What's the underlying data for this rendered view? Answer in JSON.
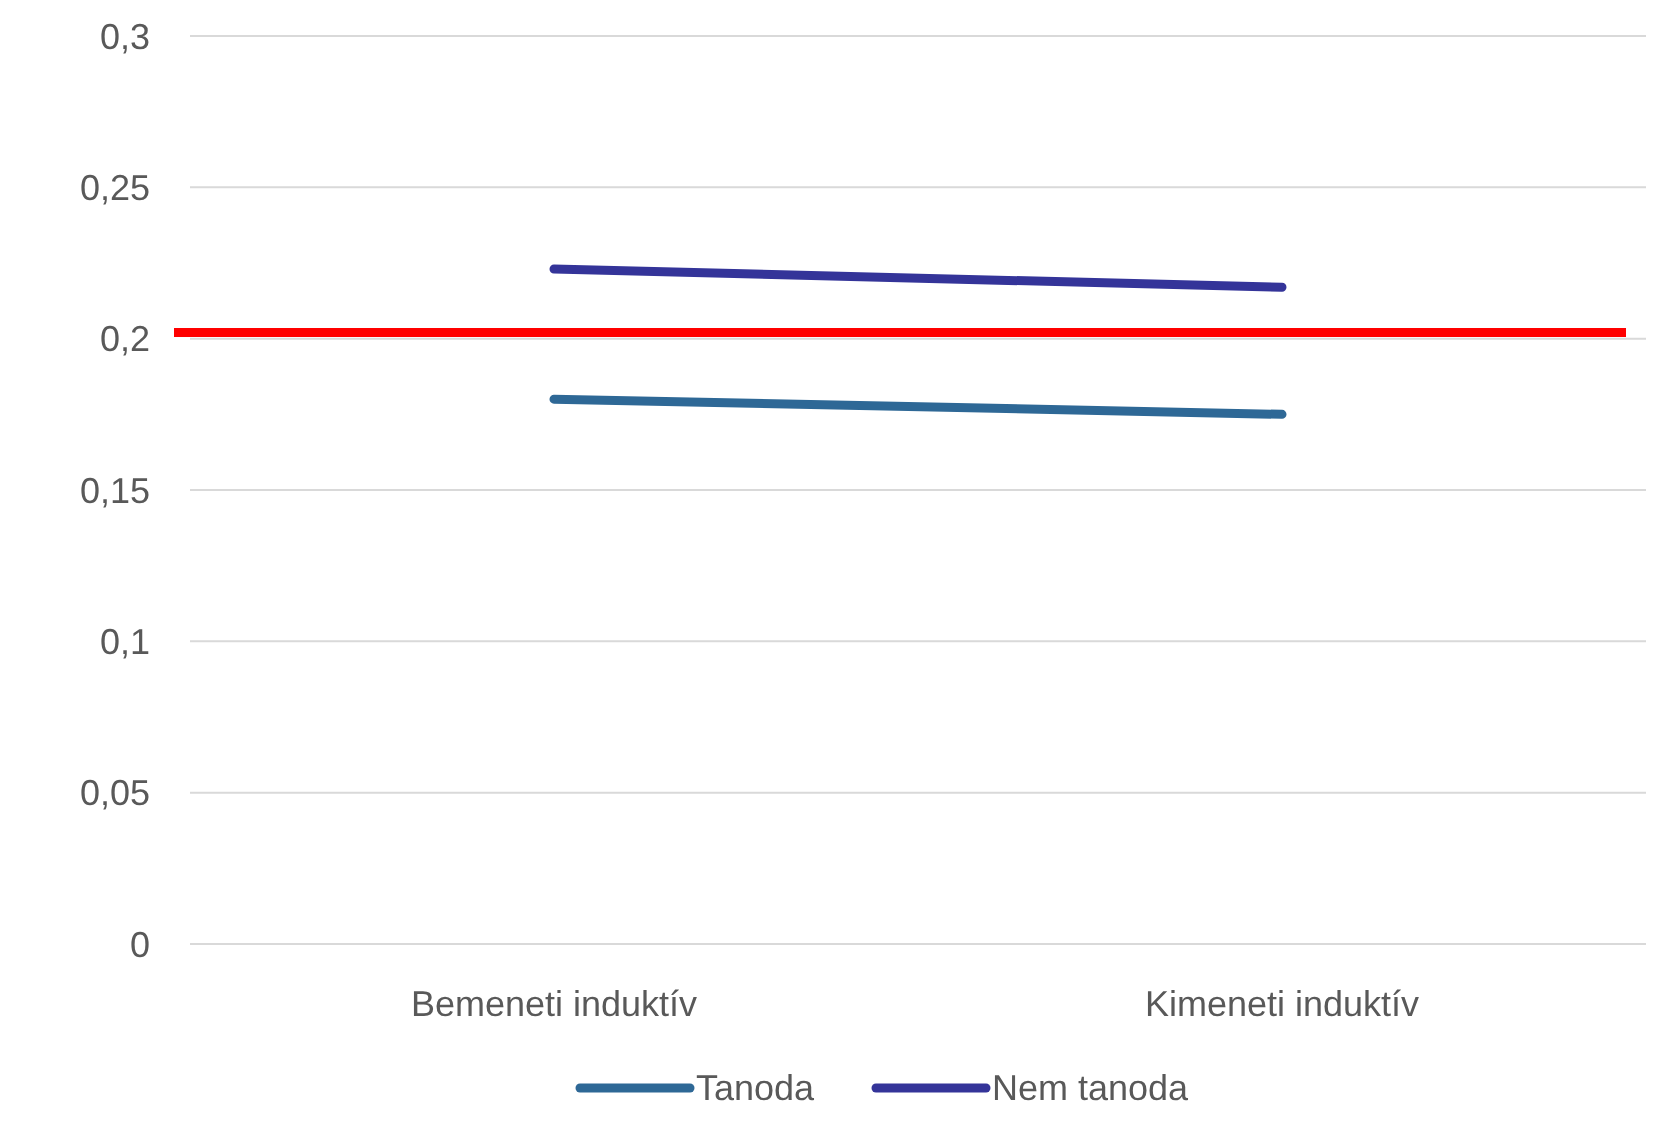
{
  "chart_data": {
    "type": "line",
    "categories": [
      "Bemeneti induktív",
      "Kimeneti induktív"
    ],
    "series": [
      {
        "name": "Tanoda",
        "color": "#2e6896",
        "values": [
          0.18,
          0.175
        ]
      },
      {
        "name": "Nem tanoda",
        "color": "#343499",
        "values": [
          0.223,
          0.217
        ]
      }
    ],
    "ylim": [
      0,
      0.3
    ],
    "yticks": [
      {
        "value": 0,
        "label": "0"
      },
      {
        "value": 0.05,
        "label": "0,05"
      },
      {
        "value": 0.1,
        "label": "0,1"
      },
      {
        "value": 0.15,
        "label": "0,15"
      },
      {
        "value": 0.2,
        "label": "0,2"
      },
      {
        "value": 0.25,
        "label": "0,25"
      },
      {
        "value": 0.3,
        "label": "0,3"
      }
    ],
    "ref_lines": [
      {
        "axis": "y",
        "value": 0.202,
        "color": "#ff0000"
      }
    ],
    "grid": "y",
    "legend": "bottom",
    "marker": "none",
    "line_style": "solid"
  }
}
